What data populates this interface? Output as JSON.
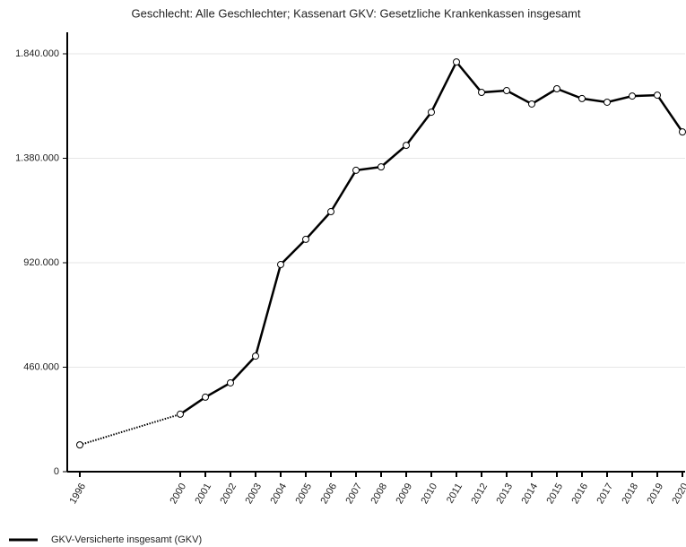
{
  "chart_data": {
    "type": "line",
    "title": "Geschlecht: Alle Geschlechter; Kassenart GKV: Gesetzliche Krankenkassen insgesamt",
    "x": [
      1996,
      2000,
      2001,
      2002,
      2003,
      2004,
      2005,
      2006,
      2007,
      2008,
      2009,
      2010,
      2011,
      2012,
      2013,
      2014,
      2015,
      2016,
      2017,
      2018,
      2019,
      2020
    ],
    "series": [
      {
        "name": "GKV-Versicherte insgesamt (GKV)",
        "color": "#000000",
        "values": [
          118000,
          253000,
          328000,
          391000,
          509000,
          912000,
          1023000,
          1145000,
          1327000,
          1342000,
          1437000,
          1583000,
          1804000,
          1670000,
          1678000,
          1619000,
          1686000,
          1643000,
          1627000,
          1654000,
          1658000,
          1496000
        ]
      }
    ],
    "xlim": [
      1996,
      2020
    ],
    "xticks": [
      1996,
      2000,
      2001,
      2002,
      2003,
      2004,
      2005,
      2006,
      2007,
      2008,
      2009,
      2010,
      2011,
      2012,
      2013,
      2014,
      2015,
      2016,
      2017,
      2018,
      2019,
      2020
    ],
    "ylim": [
      0,
      1840000
    ],
    "yticks": [
      0,
      {
        "value": 460000,
        "label": "460.000"
      },
      {
        "value": 920000,
        "label": "920.000"
      },
      {
        "value": 1380000,
        "label": "1.380.000"
      },
      {
        "value": 1840000,
        "label": "1.840.000"
      }
    ],
    "grid": true,
    "legend": "bottom-left"
  }
}
